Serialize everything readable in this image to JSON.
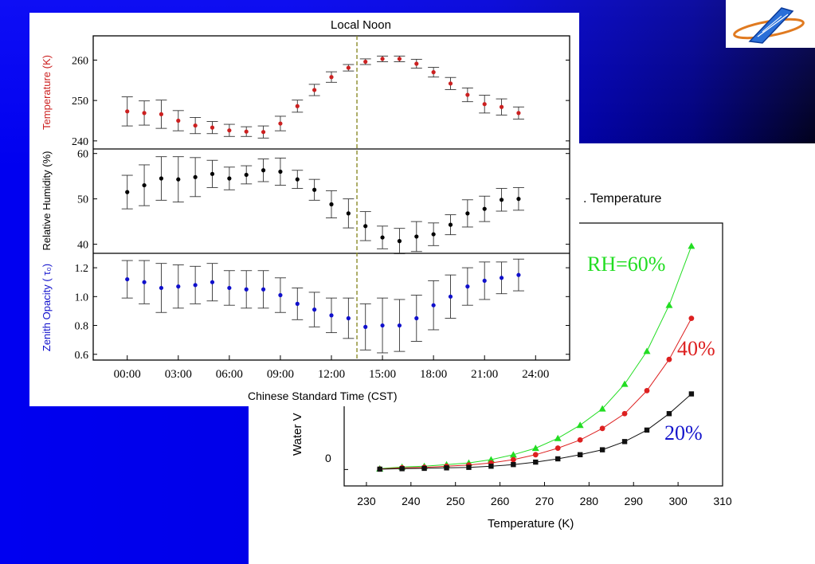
{
  "colors": {
    "temperature": "#cc2020",
    "humidity": "#000000",
    "opacity": "#1010cc",
    "noon_line": "#8b8b2a",
    "rh60": "#22dd22",
    "rh40": "#dd2020",
    "rh20": "#111111",
    "rh20_label": "#1515cc"
  },
  "logo": {
    "icon": "satellite-logo-icon"
  },
  "front_chart": {
    "title": "Local Noon",
    "xlabel": "Chinese Standard Time (CST)",
    "x_ticks": [
      "00:00",
      "03:00",
      "06:00",
      "09:00",
      "12:00",
      "15:00",
      "18:00",
      "21:00",
      "24:00"
    ],
    "panels": {
      "temperature": {
        "ylabel": "Temperature (K)",
        "ticks": [
          "240",
          "250",
          "260"
        ]
      },
      "humidity": {
        "ylabel": "Relative Humidity (%)",
        "ticks": [
          "40",
          "50",
          "60"
        ]
      },
      "opacity": {
        "ylabel": "Zenith Opacity ( τ₀)",
        "ticks": [
          "0.6",
          "0.8",
          "1.0",
          "1.2"
        ]
      }
    }
  },
  "back_chart": {
    "title_fragment": ". Temperature",
    "ylabel_fragment": "Water V",
    "xlabel": "Temperature (K)",
    "x_ticks": [
      "230",
      "240",
      "250",
      "260",
      "270",
      "280",
      "290",
      "300",
      "310"
    ],
    "y_tick_zero": "0",
    "labels": {
      "rh60": "RH=60%",
      "rh40": "40%",
      "rh20": "20%"
    }
  },
  "chart_data": [
    {
      "type": "scatter",
      "title": "Local Noon",
      "xlabel": "Chinese Standard Time (CST)",
      "ylabel": "Temperature (K)",
      "x": [
        0,
        1,
        2,
        3,
        4,
        5,
        6,
        7,
        8,
        9,
        10,
        11,
        12,
        13,
        14,
        15,
        16,
        17,
        18,
        19,
        20,
        21,
        22,
        23
      ],
      "y": [
        247.3,
        246.9,
        246.6,
        245.0,
        243.8,
        243.3,
        242.6,
        242.3,
        242.2,
        244.3,
        248.6,
        252.6,
        255.8,
        258.1,
        259.6,
        260.3,
        260.3,
        259.1,
        257.0,
        254.2,
        251.4,
        249.1,
        248.4,
        246.9
      ],
      "err": [
        3.6,
        3.0,
        3.5,
        2.5,
        2.0,
        1.5,
        1.5,
        1.2,
        1.5,
        1.8,
        1.5,
        1.4,
        1.3,
        0.8,
        0.7,
        0.7,
        0.7,
        1.1,
        1.2,
        1.5,
        1.7,
        2.2,
        2.0,
        1.5
      ],
      "ylim": [
        238,
        266
      ],
      "xlim": [
        -2,
        26
      ],
      "noon_marker_x": 13.5
    },
    {
      "type": "scatter",
      "ylabel": "Relative Humidity (%)",
      "x": [
        0,
        1,
        2,
        3,
        4,
        5,
        6,
        7,
        8,
        9,
        10,
        11,
        12,
        13,
        14,
        15,
        16,
        17,
        18,
        19,
        20,
        21,
        22,
        23
      ],
      "y": [
        51.5,
        53.0,
        54.5,
        54.3,
        54.8,
        55.5,
        54.5,
        55.3,
        56.3,
        56.0,
        54.3,
        52.0,
        48.8,
        46.8,
        44.0,
        41.5,
        40.7,
        41.7,
        42.2,
        44.3,
        46.8,
        47.8,
        49.8,
        50.0
      ],
      "err": [
        3.7,
        4.5,
        4.8,
        5.0,
        4.3,
        3.0,
        2.5,
        2.0,
        2.5,
        3.0,
        2.0,
        2.3,
        3.0,
        3.2,
        3.2,
        2.5,
        2.8,
        3.3,
        2.5,
        2.2,
        3.0,
        2.8,
        2.5,
        2.5
      ],
      "ylim": [
        38,
        61
      ],
      "xlim": [
        -2,
        26
      ]
    },
    {
      "type": "scatter",
      "ylabel": "Zenith Opacity ( τ₀)",
      "xlabel": "Chinese Standard Time (CST)",
      "x": [
        0,
        1,
        2,
        3,
        4,
        5,
        6,
        7,
        8,
        9,
        10,
        11,
        12,
        13,
        14,
        15,
        16,
        17,
        18,
        19,
        20,
        21,
        22,
        23
      ],
      "y": [
        1.12,
        1.1,
        1.06,
        1.07,
        1.08,
        1.1,
        1.06,
        1.05,
        1.05,
        1.01,
        0.95,
        0.91,
        0.87,
        0.85,
        0.79,
        0.8,
        0.8,
        0.85,
        0.94,
        1.0,
        1.07,
        1.11,
        1.13,
        1.15
      ],
      "err": [
        0.13,
        0.15,
        0.17,
        0.15,
        0.13,
        0.13,
        0.12,
        0.13,
        0.13,
        0.12,
        0.11,
        0.12,
        0.12,
        0.14,
        0.16,
        0.19,
        0.18,
        0.16,
        0.17,
        0.15,
        0.13,
        0.13,
        0.11,
        0.11
      ],
      "ylim": [
        0.56,
        1.3
      ],
      "xlim": [
        -2,
        26
      ]
    },
    {
      "type": "line",
      "xlabel": "Temperature (K)",
      "xlim": [
        225,
        310
      ],
      "ylim": [
        -0.1,
        1.5
      ],
      "x": [
        233,
        238,
        243,
        248,
        253,
        258,
        263,
        268,
        273,
        278,
        283,
        288,
        293,
        298,
        303
      ],
      "series": [
        {
          "name": "RH=60%",
          "values": [
            0.005,
            0.015,
            0.02,
            0.03,
            0.04,
            0.06,
            0.09,
            0.13,
            0.19,
            0.27,
            0.37,
            0.52,
            0.72,
            1.0,
            1.36
          ],
          "marker": "triangle"
        },
        {
          "name": "40%",
          "values": [
            0.003,
            0.01,
            0.013,
            0.02,
            0.027,
            0.04,
            0.06,
            0.09,
            0.13,
            0.18,
            0.25,
            0.34,
            0.48,
            0.67,
            0.92
          ],
          "marker": "circle"
        },
        {
          "name": "20%",
          "values": [
            0.002,
            0.005,
            0.007,
            0.01,
            0.013,
            0.02,
            0.03,
            0.045,
            0.065,
            0.09,
            0.12,
            0.17,
            0.24,
            0.34,
            0.46
          ],
          "marker": "square"
        }
      ]
    }
  ]
}
